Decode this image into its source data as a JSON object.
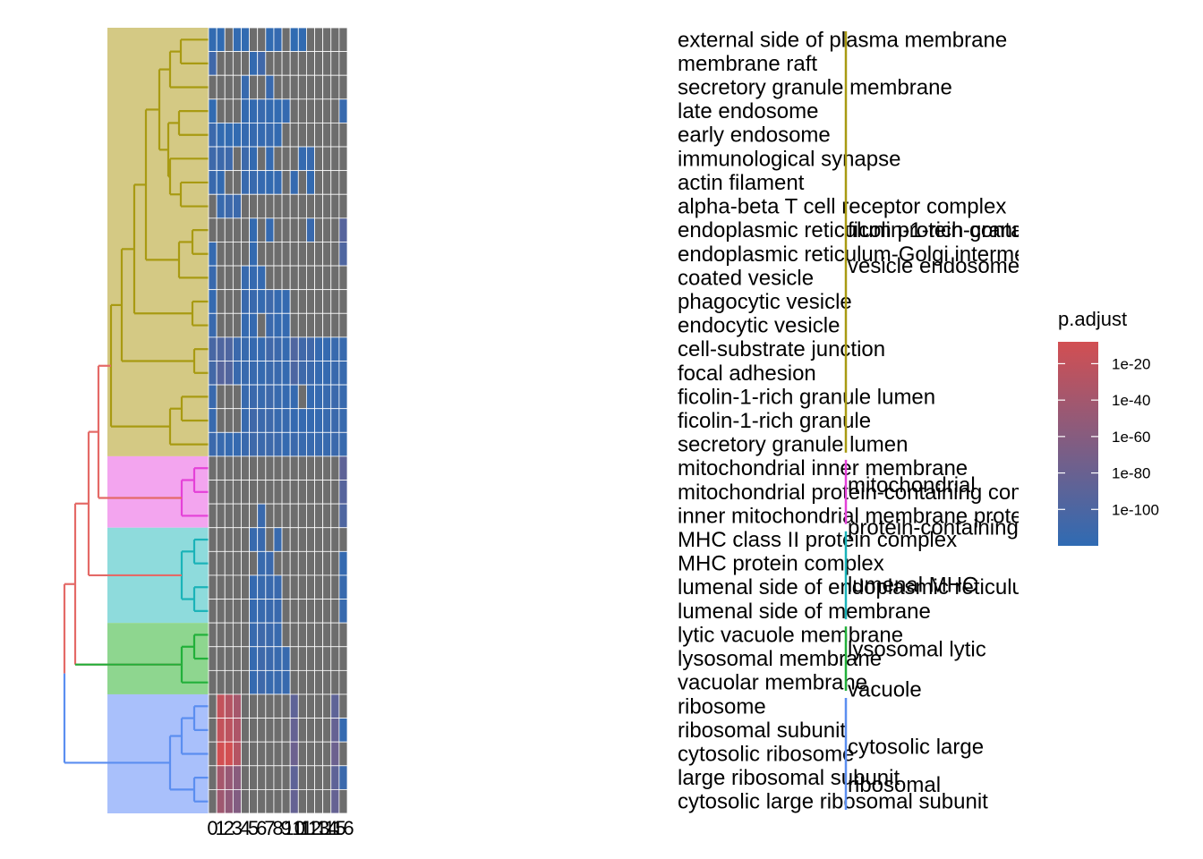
{
  "chart_data": {
    "type": "heatmap",
    "title": "",
    "xlabel": "",
    "ylabel": "",
    "columns": [
      "0",
      "1",
      "2",
      "3",
      "4",
      "5",
      "6",
      "7",
      "8",
      "9",
      "10",
      "11",
      "12",
      "13",
      "14",
      "15",
      "16"
    ],
    "rows": [
      "external side of plasma membrane",
      "membrane raft",
      "secretory granule membrane",
      "late endosome",
      "early endosome",
      "immunological synapse",
      "actin filament",
      "alpha-beta T cell receptor complex",
      "endoplasmic reticulum protein-containing complex",
      "endoplasmic reticulum-Golgi intermediate compartment",
      "coated vesicle",
      "phagocytic vesicle",
      "endocytic vesicle",
      "cell-substrate junction",
      "focal adhesion",
      "ficolin-1-rich granule lumen",
      "ficolin-1-rich granule",
      "secretory granule lumen",
      "mitochondrial inner membrane",
      "mitochondrial protein-containing complex",
      "inner mitochondrial membrane protein complex",
      "MHC class II protein complex",
      "MHC protein complex",
      "lumenal side of endoplasmic reticulum membrane",
      "lumenal side of membrane",
      "lytic vacuole membrane",
      "lysosomal membrane",
      "vacuolar membrane",
      "ribosome",
      "ribosomal subunit",
      "cytosolic ribosome",
      "large ribosomal subunit",
      "cytosolic large ribosomal subunit"
    ],
    "cell_matrix_note": "",
    "values_log10_padj": [
      [
        -10,
        -9,
        -20,
        -10,
        -10,
        -11,
        -12,
        -10,
        -12,
        -10,
        -9,
        -10,
        -20,
        -14,
        -10,
        -10,
        -10
      ],
      [
        -20,
        -10,
        -10,
        -9,
        -14,
        -11,
        -20,
        -10,
        -14,
        -10,
        -10,
        -10,
        -10,
        -10,
        -10,
        -10,
        -10
      ],
      [
        -10,
        -10,
        -10,
        -10,
        -14,
        -20,
        -10,
        -15,
        -10,
        -12,
        -10,
        -10,
        -10,
        -10,
        -10,
        -10,
        -10
      ],
      [
        -10,
        -10,
        -10,
        -10,
        -11,
        -11,
        -14,
        -11,
        -10,
        -12,
        -10,
        -10,
        -10,
        -10,
        -10,
        -10,
        -14
      ],
      [
        -16,
        -10,
        -10,
        -10,
        -12,
        -13,
        -12,
        -14,
        -11,
        -10,
        -10,
        -10,
        -10,
        -10,
        -10,
        -10,
        -10
      ],
      [
        -18,
        -17,
        -18,
        -10,
        -17,
        -11,
        -10,
        -12,
        -10,
        -10,
        -10,
        -12,
        -14,
        -10,
        -10,
        -10,
        -10
      ],
      [
        -15,
        -11,
        -10,
        -10,
        -14,
        -14,
        -12,
        -11,
        -12,
        -10,
        -12,
        -10,
        -11,
        -10,
        -10,
        -10,
        -10
      ],
      [
        -10,
        -14,
        -18,
        -16,
        -10,
        -10,
        -10,
        -10,
        -10,
        -10,
        -10,
        -10,
        -10,
        -10,
        -10,
        -10,
        -10
      ],
      [
        -10,
        -10,
        -10,
        -10,
        -10,
        -11,
        -10,
        -12,
        -10,
        -10,
        -10,
        -10,
        -15,
        -10,
        -10,
        -10,
        -35
      ],
      [
        -12,
        -10,
        -10,
        -10,
        -10,
        -11,
        -10,
        -10,
        -10,
        -10,
        -10,
        -10,
        -10,
        -10,
        -10,
        -10,
        -30
      ],
      [
        -15,
        -10,
        -10,
        -10,
        -14,
        -12,
        -12,
        -10,
        -10,
        -10,
        -10,
        -10,
        -10,
        -10,
        -10,
        -10,
        -10
      ],
      [
        -12,
        -10,
        -10,
        -10,
        -15,
        -15,
        -12,
        -18,
        -12,
        -12,
        -10,
        -10,
        -10,
        -10,
        -10,
        -10,
        -10
      ],
      [
        -15,
        -10,
        -10,
        -10,
        -12,
        -12,
        -10,
        -16,
        -12,
        -12,
        -10,
        -10,
        -10,
        -10,
        -10,
        -10,
        -10
      ],
      [
        -25,
        -30,
        -30,
        -16,
        -14,
        -12,
        -12,
        -20,
        -16,
        -12,
        -30,
        -20,
        -20,
        -12,
        -12,
        -14,
        -14
      ],
      [
        -22,
        -35,
        -32,
        -15,
        -14,
        -14,
        -12,
        -16,
        -15,
        -12,
        -28,
        -18,
        -16,
        -12,
        -12,
        -15,
        -14
      ],
      [
        -15,
        -12,
        -12,
        -10,
        -14,
        -16,
        -14,
        -18,
        -14,
        -12,
        -12,
        -10,
        -12,
        -12,
        -14,
        -16,
        -14
      ],
      [
        -14,
        -12,
        -12,
        -10,
        -14,
        -20,
        -16,
        -18,
        -14,
        -14,
        -12,
        -12,
        -12,
        -12,
        -14,
        -16,
        -14
      ],
      [
        -16,
        -14,
        -12,
        -12,
        -15,
        -18,
        -16,
        -18,
        -16,
        -12,
        -16,
        -14,
        -14,
        -14,
        -14,
        -16,
        -14
      ],
      [
        -10,
        -10,
        -10,
        -10,
        -10,
        -10,
        -10,
        -10,
        -10,
        -10,
        -10,
        -10,
        -10,
        -10,
        -10,
        -10,
        -40
      ],
      [
        -10,
        -10,
        -10,
        -10,
        -10,
        -10,
        -10,
        -10,
        -10,
        -10,
        -10,
        -10,
        -10,
        -10,
        -10,
        -10,
        -35
      ],
      [
        -10,
        -10,
        -10,
        -10,
        -10,
        -10,
        -15,
        -10,
        -10,
        -10,
        -10,
        -10,
        -10,
        -10,
        -10,
        -10,
        -30
      ],
      [
        -10,
        -10,
        -10,
        -10,
        -10,
        -14,
        -15,
        -10,
        -14,
        -10,
        -10,
        -10,
        -10,
        -10,
        -10,
        -10,
        -10
      ],
      [
        -10,
        -10,
        -10,
        -10,
        -10,
        -10,
        -14,
        -16,
        -10,
        -10,
        -10,
        -10,
        -10,
        -10,
        -10,
        -10,
        -12
      ],
      [
        -10,
        -10,
        -10,
        -10,
        -10,
        -12,
        -14,
        -15,
        -15,
        -10,
        -10,
        -10,
        -10,
        -10,
        -10,
        -10,
        -14
      ],
      [
        -10,
        -10,
        -10,
        -10,
        -10,
        -12,
        -14,
        -15,
        -15,
        -10,
        -10,
        -10,
        -10,
        -10,
        -10,
        -10,
        -14
      ],
      [
        -10,
        -10,
        -10,
        -10,
        -10,
        -14,
        -18,
        -16,
        -14,
        -10,
        -10,
        -10,
        -10,
        -10,
        -10,
        -10,
        -10
      ],
      [
        -10,
        -10,
        -10,
        -10,
        -10,
        -12,
        -18,
        -16,
        -14,
        -14,
        -10,
        -10,
        -10,
        -10,
        -10,
        -10,
        -10
      ],
      [
        -10,
        -10,
        -10,
        -10,
        -10,
        -12,
        -18,
        -14,
        -14,
        -14,
        -10,
        -10,
        -10,
        -10,
        -10,
        -10,
        -10
      ],
      [
        -10,
        -110,
        -100,
        -90,
        -10,
        -10,
        -10,
        -10,
        -10,
        -10,
        -40,
        -10,
        -10,
        -10,
        -10,
        -40,
        -10
      ],
      [
        -10,
        -110,
        -105,
        -95,
        -10,
        -10,
        -10,
        -10,
        -10,
        -10,
        -45,
        -10,
        -10,
        -10,
        -10,
        -45,
        -12
      ],
      [
        -10,
        -120,
        -120,
        -100,
        -10,
        -10,
        -10,
        -10,
        -10,
        -10,
        -50,
        -10,
        -10,
        -10,
        -10,
        -50,
        -10
      ],
      [
        -10,
        -90,
        -80,
        -70,
        -10,
        -10,
        -10,
        -10,
        -10,
        -10,
        -40,
        -10,
        -10,
        -10,
        -10,
        -40,
        -16
      ],
      [
        -10,
        -85,
        -75,
        -65,
        -10,
        -10,
        -10,
        -10,
        -10,
        -10,
        -45,
        -10,
        -10,
        -10,
        -10,
        -45,
        -10
      ]
    ],
    "present_mask": [
      [
        1,
        1,
        0,
        1,
        1,
        0,
        0,
        1,
        1,
        0,
        1,
        1,
        0,
        0,
        0,
        0,
        0
      ],
      [
        1,
        0,
        0,
        0,
        0,
        1,
        1,
        0,
        0,
        0,
        0,
        0,
        0,
        0,
        0,
        0,
        0
      ],
      [
        0,
        0,
        0,
        0,
        1,
        0,
        0,
        1,
        0,
        0,
        0,
        0,
        0,
        0,
        0,
        0,
        0
      ],
      [
        1,
        0,
        0,
        0,
        1,
        1,
        1,
        1,
        1,
        1,
        0,
        0,
        0,
        0,
        0,
        0,
        1
      ],
      [
        1,
        1,
        1,
        1,
        1,
        1,
        1,
        1,
        1,
        0,
        0,
        0,
        0,
        0,
        0,
        0,
        0
      ],
      [
        1,
        1,
        1,
        0,
        1,
        1,
        0,
        1,
        0,
        0,
        0,
        1,
        1,
        0,
        0,
        0,
        0
      ],
      [
        1,
        1,
        0,
        0,
        1,
        1,
        1,
        1,
        1,
        0,
        1,
        0,
        1,
        0,
        0,
        0,
        0
      ],
      [
        0,
        1,
        1,
        1,
        0,
        0,
        0,
        0,
        0,
        0,
        0,
        0,
        0,
        0,
        0,
        0,
        0
      ],
      [
        0,
        0,
        0,
        0,
        0,
        1,
        0,
        1,
        0,
        0,
        0,
        0,
        1,
        0,
        0,
        0,
        1
      ],
      [
        1,
        0,
        0,
        0,
        0,
        1,
        0,
        0,
        0,
        0,
        0,
        0,
        0,
        0,
        0,
        0,
        1
      ],
      [
        1,
        0,
        0,
        0,
        1,
        1,
        1,
        0,
        0,
        0,
        0,
        0,
        0,
        0,
        0,
        0,
        0
      ],
      [
        1,
        0,
        0,
        0,
        1,
        1,
        1,
        1,
        1,
        1,
        0,
        0,
        0,
        0,
        0,
        0,
        0
      ],
      [
        1,
        0,
        0,
        0,
        1,
        1,
        0,
        1,
        1,
        1,
        0,
        0,
        0,
        0,
        0,
        0,
        0
      ],
      [
        1,
        1,
        1,
        1,
        1,
        1,
        1,
        1,
        1,
        1,
        1,
        1,
        1,
        1,
        1,
        1,
        1
      ],
      [
        1,
        1,
        1,
        1,
        1,
        1,
        1,
        1,
        1,
        1,
        1,
        1,
        1,
        1,
        1,
        1,
        1
      ],
      [
        1,
        0,
        0,
        0,
        1,
        1,
        1,
        1,
        1,
        1,
        1,
        0,
        1,
        1,
        1,
        1,
        1
      ],
      [
        1,
        0,
        0,
        0,
        1,
        1,
        1,
        1,
        1,
        1,
        1,
        1,
        1,
        1,
        1,
        1,
        1
      ],
      [
        1,
        1,
        1,
        1,
        1,
        1,
        1,
        1,
        1,
        1,
        1,
        1,
        1,
        1,
        1,
        1,
        1
      ],
      [
        0,
        0,
        0,
        0,
        0,
        0,
        0,
        0,
        0,
        0,
        0,
        0,
        0,
        0,
        0,
        0,
        1
      ],
      [
        0,
        0,
        0,
        0,
        0,
        0,
        0,
        0,
        0,
        0,
        0,
        0,
        0,
        0,
        0,
        0,
        1
      ],
      [
        0,
        0,
        0,
        0,
        0,
        0,
        1,
        0,
        0,
        0,
        0,
        0,
        0,
        0,
        0,
        0,
        1
      ],
      [
        0,
        0,
        0,
        0,
        0,
        1,
        1,
        0,
        1,
        0,
        0,
        0,
        0,
        0,
        0,
        0,
        0
      ],
      [
        0,
        0,
        0,
        0,
        0,
        0,
        1,
        1,
        0,
        0,
        0,
        0,
        0,
        0,
        0,
        0,
        1
      ],
      [
        0,
        0,
        0,
        0,
        0,
        1,
        1,
        1,
        1,
        0,
        0,
        0,
        0,
        0,
        0,
        0,
        1
      ],
      [
        0,
        0,
        0,
        0,
        0,
        1,
        1,
        1,
        1,
        0,
        0,
        0,
        0,
        0,
        0,
        0,
        1
      ],
      [
        0,
        0,
        0,
        0,
        0,
        1,
        1,
        1,
        1,
        0,
        0,
        0,
        0,
        0,
        0,
        0,
        0
      ],
      [
        0,
        0,
        0,
        0,
        0,
        1,
        1,
        1,
        1,
        1,
        0,
        0,
        0,
        0,
        0,
        0,
        0
      ],
      [
        0,
        0,
        0,
        0,
        0,
        1,
        1,
        1,
        1,
        1,
        0,
        0,
        0,
        0,
        0,
        0,
        0
      ],
      [
        0,
        1,
        1,
        1,
        0,
        0,
        0,
        0,
        0,
        0,
        1,
        0,
        0,
        0,
        0,
        1,
        0
      ],
      [
        0,
        1,
        1,
        1,
        0,
        0,
        0,
        0,
        0,
        0,
        1,
        0,
        0,
        0,
        0,
        1,
        1
      ],
      [
        0,
        1,
        1,
        1,
        0,
        0,
        0,
        0,
        0,
        0,
        1,
        0,
        0,
        0,
        0,
        1,
        0
      ],
      [
        0,
        1,
        1,
        1,
        0,
        0,
        0,
        0,
        0,
        0,
        1,
        0,
        0,
        0,
        0,
        1,
        1
      ],
      [
        0,
        1,
        1,
        1,
        0,
        0,
        0,
        0,
        0,
        0,
        1,
        0,
        0,
        0,
        0,
        1,
        0
      ]
    ],
    "clusters": [
      {
        "start": 0,
        "end": 17,
        "color": "#a89a12",
        "fill": "#d4c984",
        "labels": [
          {
            "text": "ficolin-1-rich granule",
            "row": 8
          },
          {
            "text": "vesicle endosome",
            "row": 9.5
          }
        ]
      },
      {
        "start": 18,
        "end": 20,
        "color": "#e441d8",
        "fill": "#f3a5ef",
        "labels": [
          {
            "text": "mitochondrial",
            "row": 18.7
          },
          {
            "text": "protein-containing",
            "row": 20.5
          }
        ]
      },
      {
        "start": 21,
        "end": 24,
        "color": "#1ab3b8",
        "fill": "#8edbdc",
        "labels": [
          {
            "text": "lumenal MHC",
            "row": 22.9
          }
        ]
      },
      {
        "start": 25,
        "end": 27,
        "color": "#22b03a",
        "fill": "#8ed68f",
        "labels": [
          {
            "text": "lysosomal lytic",
            "row": 25.6
          },
          {
            "text": "vacuole",
            "row": 27.3
          }
        ]
      },
      {
        "start": 28,
        "end": 32,
        "color": "#5b8ef0",
        "fill": "#a9c0fb",
        "labels": [
          {
            "text": "cytosolic large",
            "row": 29.7
          },
          {
            "text": "ribosomal",
            "row": 31.3
          }
        ]
      }
    ],
    "missing_color": "#6d6d6d",
    "color_low": "#2f6bb3",
    "color_high": "#d24f52",
    "legend": {
      "title": "p.adjust",
      "position": "right",
      "ticks": [
        {
          "label": "1e-100",
          "log10": -100
        },
        {
          "label": "1e-80",
          "log10": -80
        },
        {
          "label": "1e-60",
          "log10": -60
        },
        {
          "label": "1e-40",
          "log10": -40
        },
        {
          "label": "1e-20",
          "log10": -20
        }
      ],
      "range": [
        -120,
        -8
      ]
    },
    "dendrogram_root_colors": {
      "upper": "#e46a67",
      "lower": "#5b8ef0"
    }
  }
}
